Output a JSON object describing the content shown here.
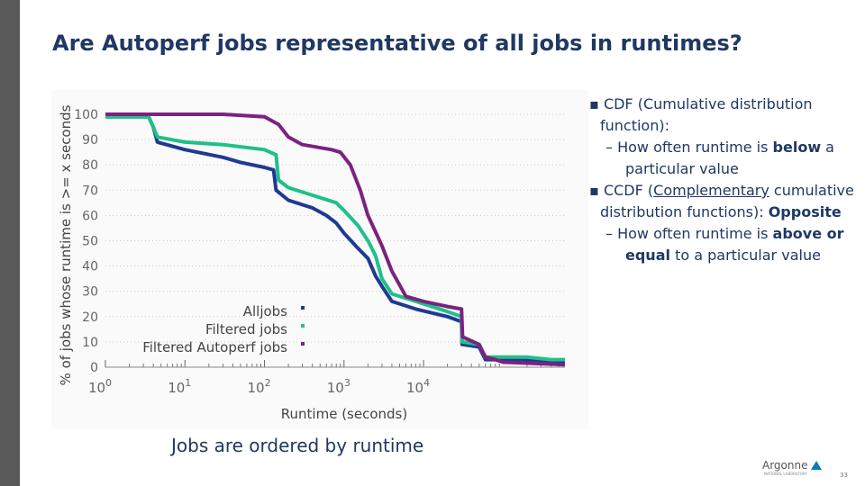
{
  "slide": {
    "title": "Are Autoperf jobs representative of all jobs in runtimes?",
    "caption": "Jobs are ordered by runtime",
    "page_number": "33",
    "logo_text": "Argonne",
    "logo_sub": "NATIONAL LABORATORY"
  },
  "bullets": {
    "b1_text": "CDF (Cumulative distribution function):",
    "b1_sub_1": "How often runtime is ",
    "b1_sub_bold": "below",
    "b1_sub_2": " a particular value",
    "b2_ul": "Complementary",
    "b2_pre": "CCDF (",
    "b2_post": " cumulative distribution functions): ",
    "b2_bold": "Opposite",
    "b2_sub_1": "How often runtime is ",
    "b2_sub_bold1": "above or equal",
    "b2_sub_2": " to a particular value"
  },
  "chart_data": {
    "type": "line",
    "xlabel": "Runtime (seconds)",
    "ylabel": "% of jobs whose runtime is >= x seconds",
    "x_scale": "log",
    "xlim": [
      1,
      600000
    ],
    "ylim": [
      0,
      100
    ],
    "yticks": [
      0,
      10,
      20,
      30,
      40,
      50,
      60,
      70,
      80,
      90,
      100
    ],
    "xticks": [
      {
        "value": 1,
        "base": "10",
        "exp": "0"
      },
      {
        "value": 10,
        "base": "10",
        "exp": "1"
      },
      {
        "value": 100,
        "base": "10",
        "exp": "2"
      },
      {
        "value": 1000,
        "base": "10",
        "exp": "3"
      },
      {
        "value": 10000,
        "base": "10",
        "exp": "4"
      }
    ],
    "grid": true,
    "legend_position": "bottom-left",
    "series": [
      {
        "name": "Alljobs",
        "color": "#1f3a93",
        "points": [
          [
            1,
            99
          ],
          [
            3.5,
            99
          ],
          [
            4,
            95
          ],
          [
            4.5,
            89
          ],
          [
            10,
            86
          ],
          [
            30,
            83
          ],
          [
            50,
            81
          ],
          [
            100,
            79
          ],
          [
            130,
            78
          ],
          [
            140,
            70
          ],
          [
            200,
            66
          ],
          [
            400,
            63
          ],
          [
            600,
            60
          ],
          [
            800,
            57
          ],
          [
            1000,
            53
          ],
          [
            1500,
            47
          ],
          [
            2000,
            43
          ],
          [
            2500,
            36
          ],
          [
            3000,
            32
          ],
          [
            4000,
            26
          ],
          [
            8000,
            23
          ],
          [
            20000,
            20
          ],
          [
            30000,
            18
          ],
          [
            30500,
            9
          ],
          [
            50000,
            8
          ],
          [
            60000,
            3
          ],
          [
            200000,
            3
          ],
          [
            400000,
            2
          ],
          [
            600000,
            2
          ]
        ]
      },
      {
        "name": "Filtered jobs",
        "color": "#20c08a",
        "points": [
          [
            1,
            99
          ],
          [
            3.5,
            99
          ],
          [
            4,
            95
          ],
          [
            4.5,
            91
          ],
          [
            10,
            89
          ],
          [
            30,
            88
          ],
          [
            100,
            86
          ],
          [
            140,
            84
          ],
          [
            150,
            74
          ],
          [
            200,
            71
          ],
          [
            400,
            68
          ],
          [
            800,
            65
          ],
          [
            1000,
            62
          ],
          [
            1500,
            56
          ],
          [
            2000,
            50
          ],
          [
            2500,
            44
          ],
          [
            3000,
            35
          ],
          [
            4000,
            29
          ],
          [
            8000,
            26
          ],
          [
            20000,
            22
          ],
          [
            30000,
            20
          ],
          [
            30500,
            10
          ],
          [
            50000,
            9
          ],
          [
            60000,
            4
          ],
          [
            200000,
            4
          ],
          [
            400000,
            3
          ],
          [
            600000,
            3
          ]
        ]
      },
      {
        "name": "Filtered Autoperf jobs",
        "color": "#7b2281",
        "points": [
          [
            1,
            100
          ],
          [
            30,
            100
          ],
          [
            100,
            99
          ],
          [
            150,
            96
          ],
          [
            200,
            91
          ],
          [
            300,
            88
          ],
          [
            700,
            86
          ],
          [
            900,
            85
          ],
          [
            1200,
            80
          ],
          [
            1600,
            70
          ],
          [
            2000,
            60
          ],
          [
            3000,
            48
          ],
          [
            4000,
            38
          ],
          [
            6000,
            28
          ],
          [
            10000,
            26
          ],
          [
            20000,
            24
          ],
          [
            30000,
            23
          ],
          [
            31000,
            12
          ],
          [
            50000,
            9
          ],
          [
            60000,
            4
          ],
          [
            80000,
            3
          ],
          [
            100000,
            2
          ],
          [
            600000,
            1
          ]
        ]
      }
    ]
  }
}
